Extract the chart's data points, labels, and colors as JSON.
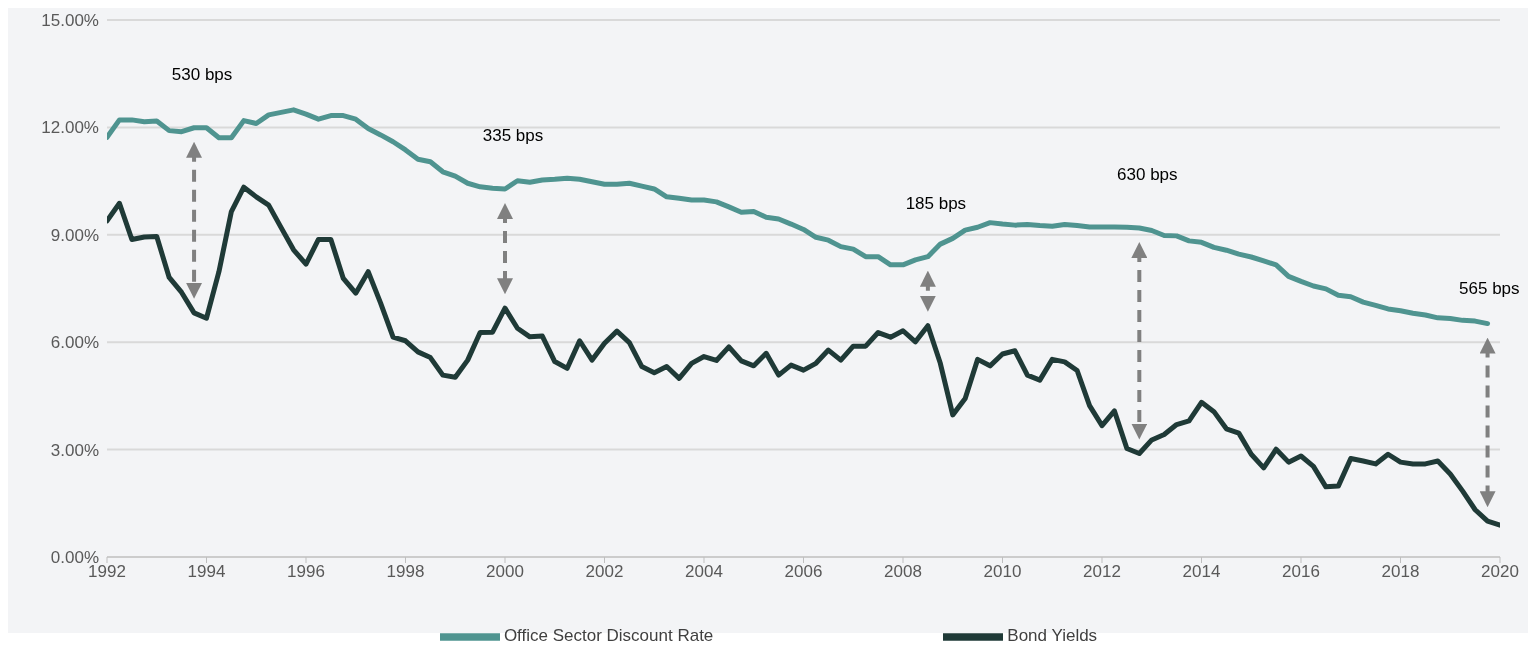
{
  "chart_data": {
    "type": "line",
    "legend": "bottom",
    "grid": "y",
    "marker": "none",
    "line_style": "solid",
    "xlim": [
      1992,
      2020
    ],
    "xticks": [
      1992,
      1994,
      1996,
      1998,
      2000,
      2002,
      2004,
      2006,
      2008,
      2010,
      2012,
      2014,
      2016,
      2018,
      2020
    ],
    "ylim": [
      0,
      15
    ],
    "yticks": [
      {
        "value": 0,
        "label": "0.00%"
      },
      {
        "value": 3,
        "label": "3.00%"
      },
      {
        "value": 6,
        "label": "6.00%"
      },
      {
        "value": 9,
        "label": "9.00%"
      },
      {
        "value": 12,
        "label": "12.00%"
      },
      {
        "value": 15,
        "label": "15.00%"
      }
    ],
    "x": [
      1992,
      1992.25,
      1992.5,
      1992.75,
      1993,
      1993.25,
      1993.5,
      1993.75,
      1994,
      1994.25,
      1994.5,
      1994.75,
      1995,
      1995.25,
      1995.5,
      1995.75,
      1996,
      1996.25,
      1996.5,
      1996.75,
      1997,
      1997.25,
      1997.5,
      1997.75,
      1998,
      1998.25,
      1998.5,
      1998.75,
      1999,
      1999.25,
      1999.5,
      1999.75,
      2000,
      2000.25,
      2000.5,
      2000.75,
      2001,
      2001.25,
      2001.5,
      2001.75,
      2002,
      2002.25,
      2002.5,
      2002.75,
      2003,
      2003.25,
      2003.5,
      2003.75,
      2004,
      2004.25,
      2004.5,
      2004.75,
      2005,
      2005.25,
      2005.5,
      2005.75,
      2006,
      2006.25,
      2006.5,
      2006.75,
      2007,
      2007.25,
      2007.5,
      2007.75,
      2008,
      2008.25,
      2008.5,
      2008.75,
      2009,
      2009.25,
      2009.5,
      2009.75,
      2010,
      2010.25,
      2010.5,
      2010.75,
      2011,
      2011.25,
      2011.5,
      2011.75,
      2012,
      2012.25,
      2012.5,
      2012.75,
      2013,
      2013.25,
      2013.5,
      2013.75,
      2014,
      2014.25,
      2014.5,
      2014.75,
      2015,
      2015.25,
      2015.5,
      2015.75,
      2016,
      2016.25,
      2016.5,
      2016.75,
      2017,
      2017.25,
      2017.5,
      2017.75,
      2018,
      2018.25,
      2018.5,
      2018.75,
      2019,
      2019.25,
      2019.5,
      2019.75,
      2020
    ],
    "series": [
      {
        "name": "Office Sector Discount Rate",
        "color": "#4f9490",
        "values": [
          11.72,
          12.21,
          12.21,
          12.16,
          12.18,
          11.91,
          11.88,
          11.99,
          11.99,
          11.71,
          11.71,
          12.19,
          12.11,
          12.35,
          12.42,
          12.49,
          12.37,
          12.23,
          12.33,
          12.33,
          12.23,
          11.97,
          11.79,
          11.6,
          11.37,
          11.11,
          11.04,
          10.76,
          10.64,
          10.44,
          10.34,
          10.3,
          10.28,
          10.51,
          10.47,
          10.53,
          10.55,
          10.58,
          10.55,
          10.48,
          10.41,
          10.41,
          10.44,
          10.36,
          10.28,
          10.06,
          10.02,
          9.97,
          9.97,
          9.92,
          9.78,
          9.63,
          9.65,
          9.49,
          9.44,
          9.3,
          9.15,
          8.93,
          8.85,
          8.67,
          8.6,
          8.39,
          8.39,
          8.16,
          8.16,
          8.3,
          8.39,
          8.74,
          8.9,
          9.13,
          9.21,
          9.34,
          9.3,
          9.27,
          9.29,
          9.26,
          9.24,
          9.29,
          9.26,
          9.22,
          9.22,
          9.22,
          9.21,
          9.19,
          9.12,
          8.98,
          8.97,
          8.83,
          8.79,
          8.65,
          8.57,
          8.46,
          8.38,
          8.27,
          8.16,
          7.84,
          7.7,
          7.57,
          7.49,
          7.31,
          7.27,
          7.12,
          7.03,
          6.93,
          6.88,
          6.81,
          6.76,
          6.68,
          6.66,
          6.61,
          6.59,
          6.52,
          null
        ]
      },
      {
        "name": "Bond Yields",
        "color": "#1f3a37",
        "values": [
          9.39,
          9.88,
          8.87,
          8.94,
          8.95,
          7.81,
          7.39,
          6.82,
          6.67,
          7.97,
          9.65,
          10.33,
          10.06,
          9.83,
          9.2,
          8.58,
          8.18,
          8.87,
          8.87,
          7.78,
          7.37,
          7.97,
          7.09,
          6.14,
          6.04,
          5.73,
          5.57,
          5.08,
          5.02,
          5.5,
          6.27,
          6.28,
          6.95,
          6.39,
          6.15,
          6.17,
          5.46,
          5.27,
          6.04,
          5.5,
          5.97,
          6.31,
          5.99,
          5.32,
          5.15,
          5.32,
          4.99,
          5.41,
          5.6,
          5.49,
          5.87,
          5.48,
          5.34,
          5.69,
          5.08,
          5.36,
          5.22,
          5.41,
          5.78,
          5.5,
          5.89,
          5.89,
          6.27,
          6.14,
          6.32,
          6.01,
          6.46,
          5.41,
          3.97,
          4.43,
          5.52,
          5.34,
          5.67,
          5.76,
          5.08,
          4.94,
          5.52,
          5.45,
          5.21,
          4.23,
          3.67,
          4.08,
          3.03,
          2.89,
          3.27,
          3.42,
          3.7,
          3.8,
          4.32,
          4.06,
          3.58,
          3.46,
          2.87,
          2.49,
          3.01,
          2.65,
          2.82,
          2.53,
          1.96,
          1.98,
          2.75,
          2.68,
          2.6,
          2.87,
          2.65,
          2.6,
          2.6,
          2.68,
          2.32,
          1.84,
          1.32,
          1.0,
          0.89
        ]
      }
    ],
    "annotations": [
      {
        "text": "530 bps",
        "x": 1993.75,
        "y": 11.99
      },
      {
        "text": "335 bps",
        "x": 2000,
        "y": 10.28
      },
      {
        "text": "185 bps",
        "x": 2008.5,
        "y": 8.39
      },
      {
        "text": "630 bps",
        "x": 2012.75,
        "y": 9.19
      },
      {
        "text": "565 bps",
        "x": 2019.75,
        "y": 6.52
      }
    ]
  }
}
